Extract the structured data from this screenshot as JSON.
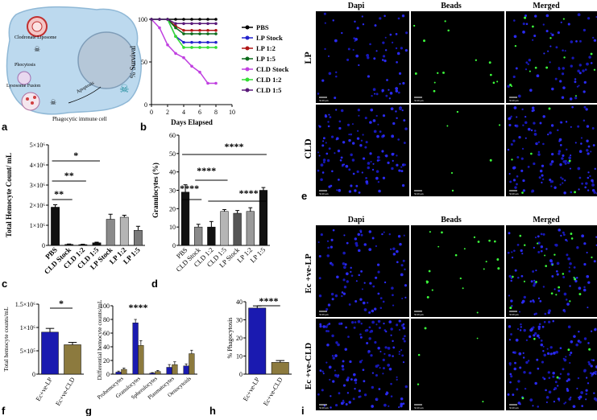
{
  "panel_letters": {
    "a": "a",
    "b": "b",
    "c": "c",
    "d": "d",
    "e": "e",
    "f": "f",
    "g": "g",
    "h": "h",
    "i": "i"
  },
  "diagram": {
    "labels": [
      "Clodronate Liposome",
      "Phocytosis",
      "Lysosome Fusion",
      "Apoptosis",
      "Phagocytic immune cell"
    ]
  },
  "micrograph_e": {
    "col_headers": [
      "Dapi",
      "Beads",
      "Merged"
    ],
    "row_labels": [
      "LP",
      "CLD"
    ],
    "scale_text": "50.00 µm"
  },
  "micrograph_i": {
    "col_headers": [
      "Dapi",
      "Beads",
      "Merged"
    ],
    "row_labels": [
      "Ec +ve-LP",
      "Ec +ve-CLD"
    ],
    "scale_text": "50.00 µm"
  },
  "colors": {
    "blue": "#1a1ab0",
    "olive": "#8c7a3e",
    "black": "#111111",
    "grey1": "#8a8a8a",
    "grey2": "#b5b5b5",
    "grey3": "#7a7a7a"
  },
  "chart_data": [
    {
      "id": "b",
      "type": "line",
      "xlabel": "Days Elapsed",
      "ylabel": "% Survival",
      "xlim": [
        0,
        10
      ],
      "ylim": [
        0,
        100
      ],
      "xticks": [
        0,
        2,
        4,
        6,
        8,
        10
      ],
      "yticks": [
        0,
        50,
        100
      ],
      "x": [
        0,
        1,
        2,
        3,
        4,
        5,
        6,
        7,
        8
      ],
      "legend_position": "right",
      "series": [
        {
          "name": "PBS",
          "color": "#000000",
          "values": [
            100,
            100,
            100,
            100,
            100,
            100,
            100,
            100,
            100
          ]
        },
        {
          "name": "LP Stock",
          "color": "#2222cc",
          "values": [
            100,
            100,
            100,
            80,
            73,
            73,
            73,
            73,
            73
          ]
        },
        {
          "name": "LP 1:2",
          "color": "#b01515",
          "values": [
            100,
            100,
            100,
            92,
            87,
            87,
            87,
            87,
            87
          ]
        },
        {
          "name": "LP 1:5",
          "color": "#0a6b1a",
          "values": [
            100,
            100,
            100,
            90,
            83,
            83,
            83,
            83,
            83
          ]
        },
        {
          "name": "CLD Stock",
          "color": "#c040e0",
          "values": [
            100,
            90,
            70,
            60,
            55,
            45,
            38,
            25,
            25
          ]
        },
        {
          "name": "CLD 1:2",
          "color": "#33dd33",
          "values": [
            100,
            100,
            100,
            80,
            67,
            67,
            67,
            67,
            67
          ]
        },
        {
          "name": "CLD 1:5",
          "color": "#5a1a7a",
          "values": [
            100,
            100,
            100,
            95,
            95,
            95,
            95,
            95,
            95
          ]
        }
      ]
    },
    {
      "id": "c",
      "type": "bar",
      "ylabel": "Total Hemocyte Count/ mL",
      "ylim": [
        0,
        5000000
      ],
      "yticks": [
        "0",
        "1×10⁶",
        "2×10⁶",
        "3×10⁶",
        "4×10⁶",
        "5×10⁶"
      ],
      "categories": [
        "PBS",
        "CLD Stock",
        "CLD 1:2",
        "CLD 1:5",
        "LP Stock",
        "LP 1:2",
        "LP 1:5"
      ],
      "values": [
        1900000,
        50000,
        40000,
        130000,
        1300000,
        1400000,
        750000
      ],
      "errors": [
        120000,
        20000,
        20000,
        30000,
        250000,
        100000,
        200000
      ],
      "bar_colors": [
        "#111111",
        "#111111",
        "#111111",
        "#111111",
        "#8a8a8a",
        "#b5b5b5",
        "#7a7a7a"
      ],
      "significance": [
        "**",
        "**",
        "*"
      ]
    },
    {
      "id": "d",
      "type": "bar",
      "ylabel": "Granulocytes (%)",
      "ylim": [
        0,
        60
      ],
      "yticks": [
        0,
        10,
        20,
        30,
        40,
        50,
        60
      ],
      "categories": [
        "PBS",
        "CLD Stock",
        "CLD 1:2",
        "CLD 1:5",
        "LP Stock",
        "LP 1:2",
        "LP 1:5"
      ],
      "values": [
        29,
        10,
        10,
        18.5,
        17.5,
        18.5,
        30
      ],
      "errors": [
        4,
        1.5,
        3,
        1,
        1.5,
        2,
        1.5
      ],
      "bar_colors": [
        "#111111",
        "#8a8a8a",
        "#111111",
        "#b5b5b5",
        "#555555",
        "#9a9a9a",
        "#111111"
      ],
      "significance": [
        "****",
        "****",
        "****",
        "****"
      ]
    },
    {
      "id": "f",
      "type": "bar",
      "ylabel": "Total hemocyte counts/mL",
      "ylim": [
        0,
        1500000
      ],
      "yticks": [
        "0",
        "5×10⁵",
        "1×10⁶",
        "1.5×10⁶"
      ],
      "categories": [
        "Ec+ve-LP",
        "Ec+ve-CLD"
      ],
      "values": [
        900000,
        630000
      ],
      "errors": [
        80000,
        50000
      ],
      "bar_colors": [
        "#1a1ab0",
        "#8c7a3e"
      ],
      "significance": [
        "*"
      ]
    },
    {
      "id": "g",
      "type": "bar",
      "ylabel": "Differential hemocyte counts/mL",
      "ylim": [
        0,
        100
      ],
      "yticks": [
        0,
        20,
        40,
        60,
        80,
        100
      ],
      "categories": [
        "Prohemocytes",
        "Granulocytes",
        "Spherulocytes",
        "Plasmatocytes",
        "Oenocytoids"
      ],
      "series": [
        {
          "name": "Ec+ve-LP",
          "color": "#1a1ab0",
          "values": [
            3,
            75,
            1.5,
            10,
            12
          ],
          "errors": [
            1.5,
            5,
            0.8,
            4,
            3
          ]
        },
        {
          "name": "Ec+ve-CLD",
          "color": "#8c7a3e",
          "values": [
            7,
            42,
            4,
            14,
            30
          ],
          "errors": [
            2,
            7,
            1.5,
            4,
            5
          ]
        }
      ],
      "significance": [
        "****"
      ]
    },
    {
      "id": "h",
      "type": "bar",
      "ylabel": "% Phagocytosis",
      "ylim": [
        0,
        40
      ],
      "yticks": [
        0,
        10,
        20,
        30,
        40
      ],
      "categories": [
        "Ec+ve-LP",
        "Ec+ve-CLD"
      ],
      "values": [
        36.5,
        6.5
      ],
      "errors": [
        1.2,
        1
      ],
      "bar_colors": [
        "#1a1ab0",
        "#8c7a3e"
      ],
      "significance": [
        "****"
      ]
    }
  ]
}
